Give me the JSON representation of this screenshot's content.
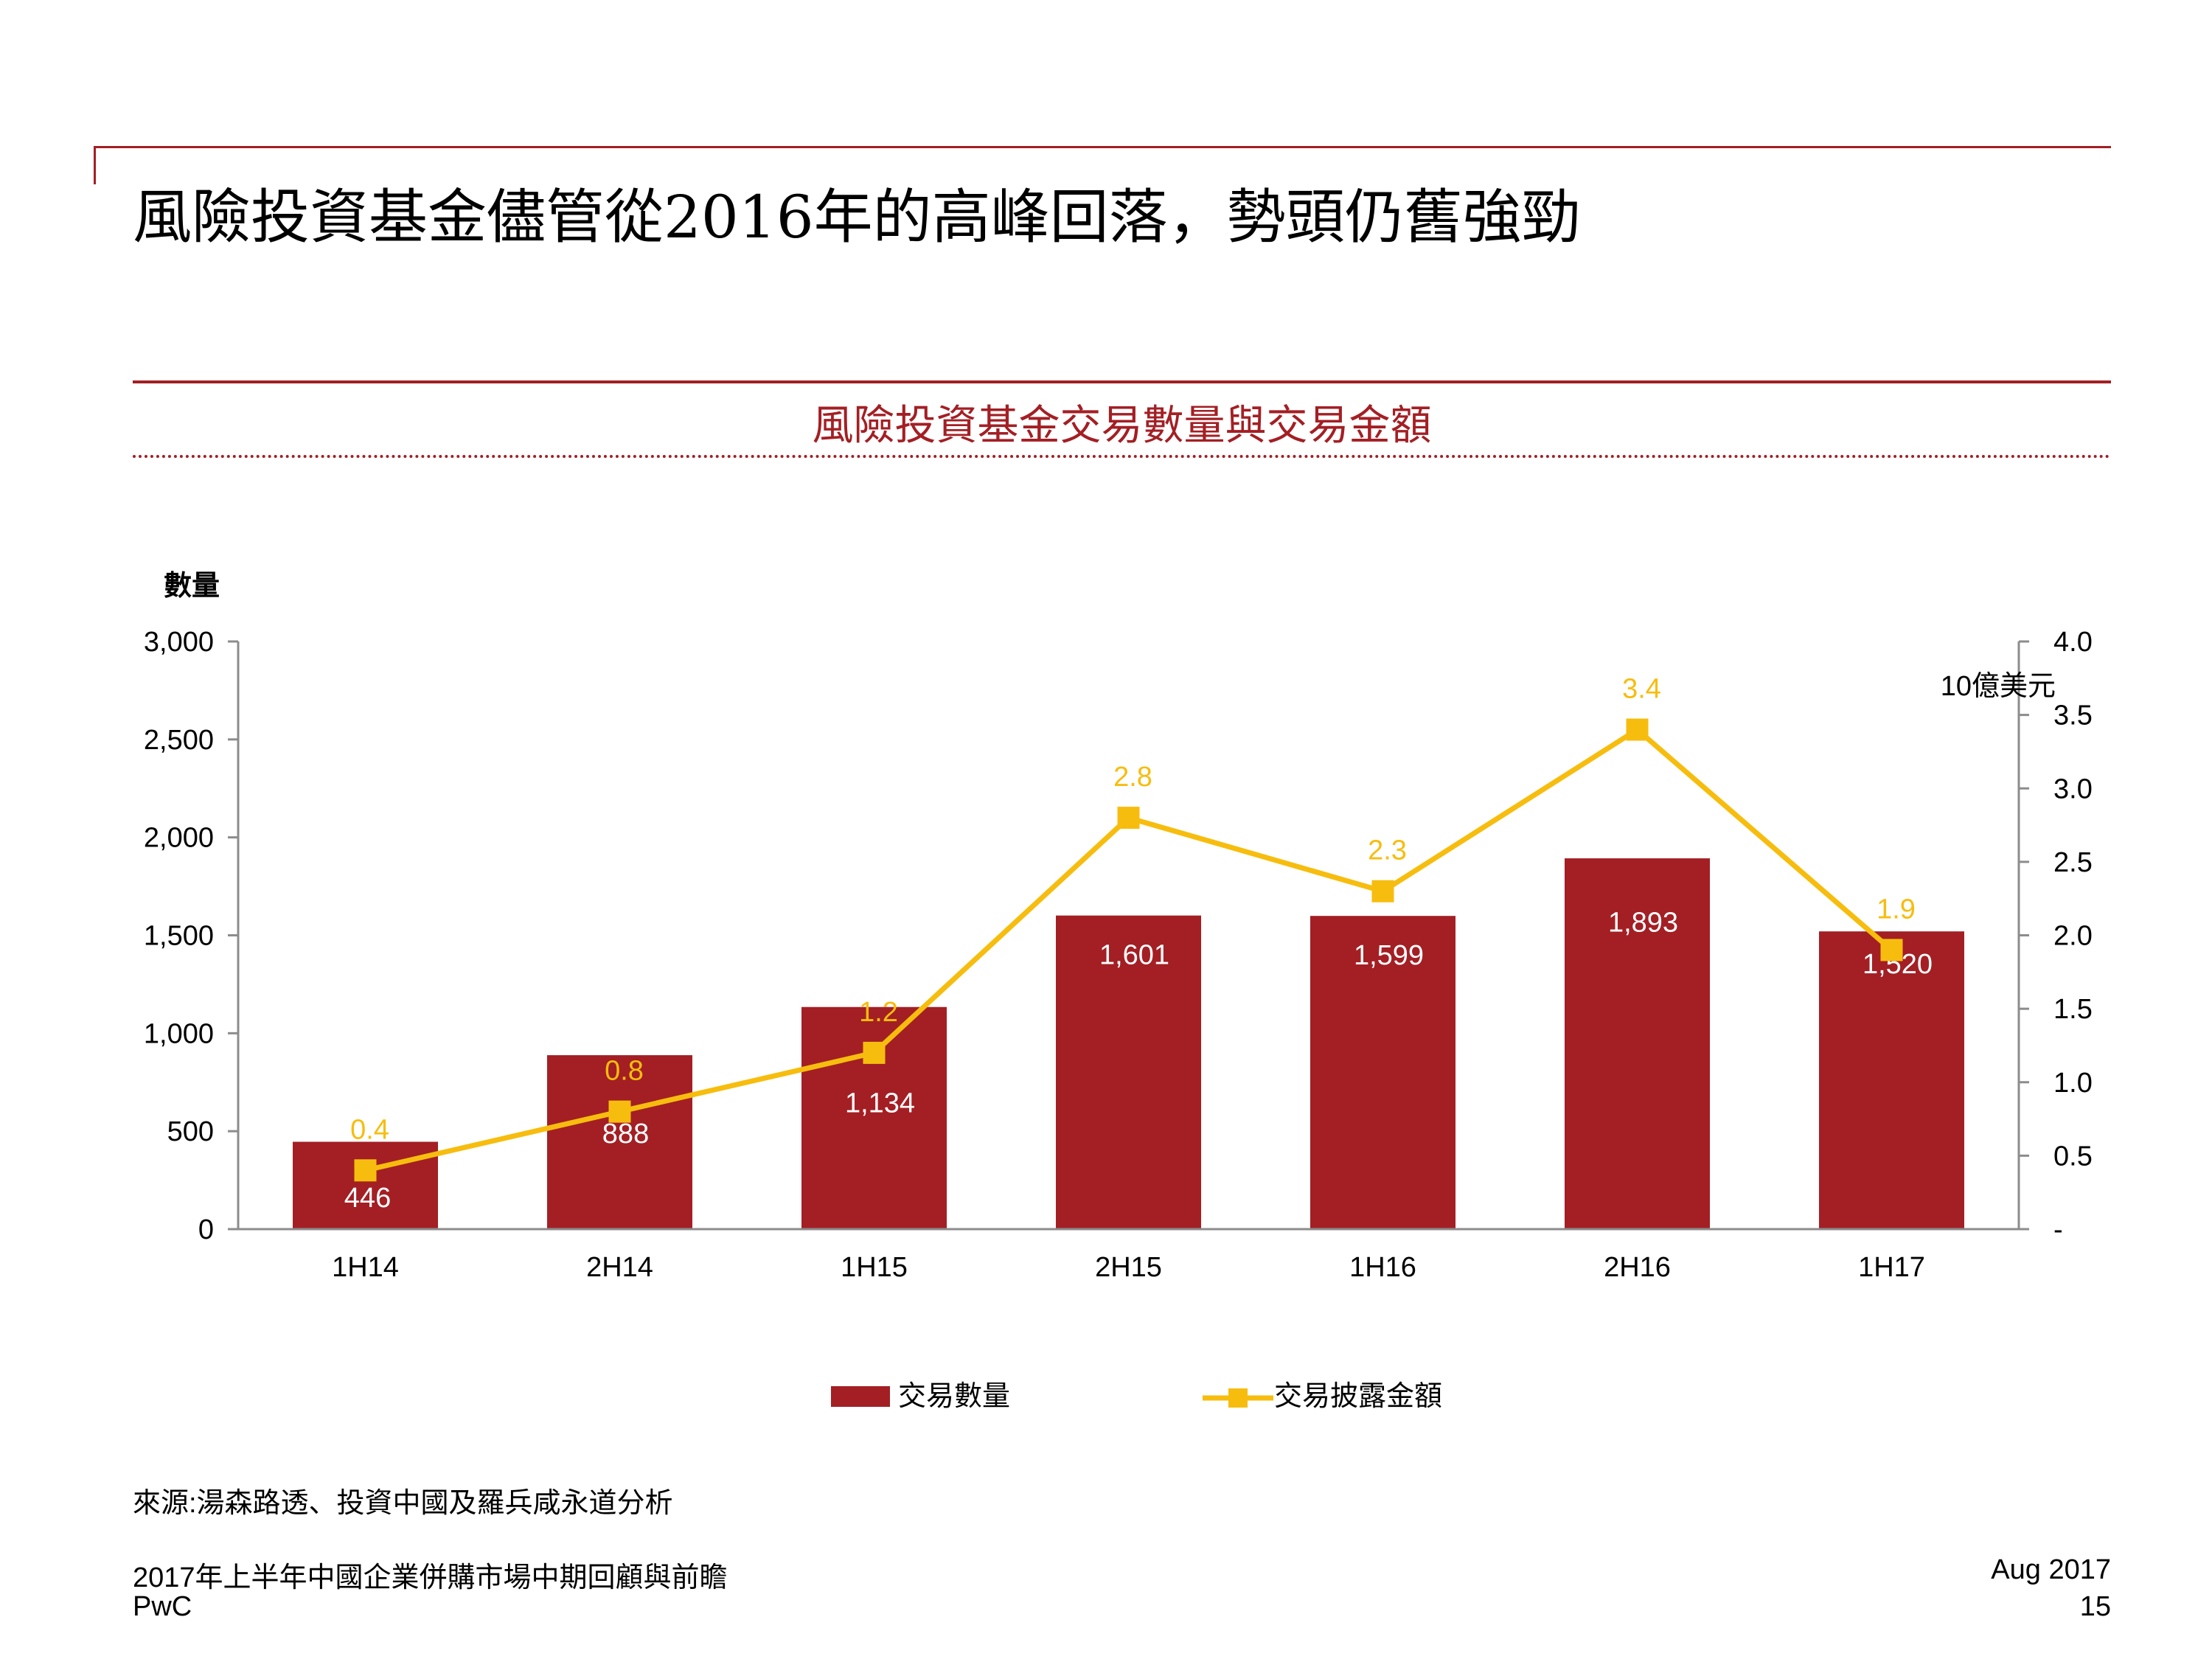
{
  "slide": {
    "title": "風險投資基金儘管從2016年的高峰回落，勢頭仍舊強勁",
    "source": "來源:湯森路透、投資中國及羅兵咸永道分析",
    "footer_title": "2017年上半年中國企業併購市場中期回顧與前瞻",
    "footer_brand": "PwC",
    "footer_date": "Aug 2017",
    "page_number": "15"
  },
  "chart_data": {
    "type": "bar",
    "title": "風險投資基金交易數量與交易金額",
    "categories": [
      "1H14",
      "2H14",
      "1H15",
      "2H15",
      "1H16",
      "2H16",
      "1H17"
    ],
    "series": [
      {
        "name": "交易數量",
        "type": "bar",
        "axis": "left",
        "color": "#a31f24",
        "values": [
          446,
          888,
          1134,
          1601,
          1599,
          1893,
          1520
        ]
      },
      {
        "name": "交易披露金額",
        "type": "line",
        "axis": "right",
        "color": "#f7bd0e",
        "values": [
          0.4,
          0.8,
          1.2,
          2.8,
          2.3,
          3.4,
          1.9
        ]
      }
    ],
    "left_axis": {
      "label": "數量",
      "ylim": [
        0,
        3000
      ],
      "ticks": [
        "0",
        "500",
        "1,000",
        "1,500",
        "2,000",
        "2,500",
        "3,000"
      ]
    },
    "right_axis": {
      "label": "10億美元",
      "ylim": [
        0,
        4
      ],
      "ticks": [
        "-",
        "0.5",
        "1.0",
        "1.5",
        "2.0",
        "2.5",
        "3.0",
        "3.5",
        "4.0"
      ]
    },
    "bar_value_labels": [
      "446",
      "888",
      "1,134",
      "1,601",
      "1,599",
      "1,893",
      "1,520"
    ],
    "line_value_labels": [
      "0.4",
      "0.8",
      "1.2",
      "2.8",
      "2.3",
      "3.4",
      "1.9"
    ],
    "grid": false,
    "legend": "bottom"
  }
}
